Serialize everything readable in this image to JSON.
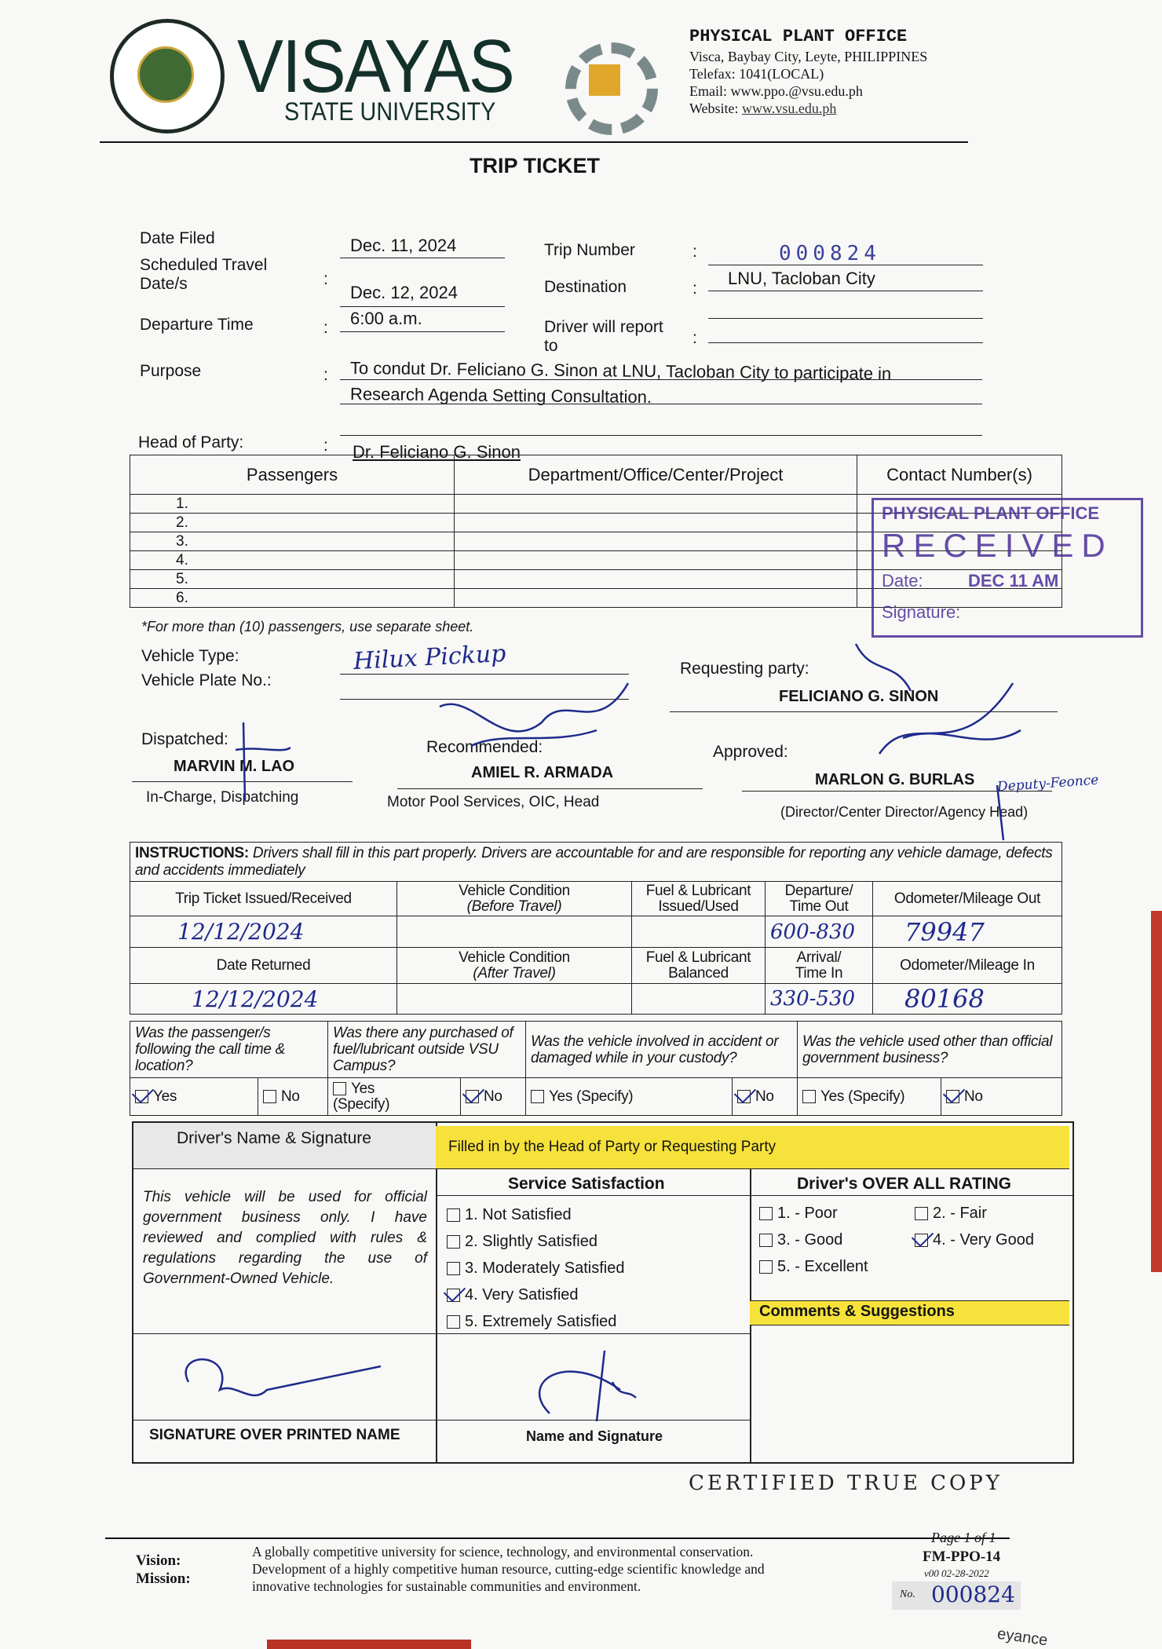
{
  "header": {
    "seal_text": "VISAYAS STATE UNIVERSITY",
    "university_name": "VISAYAS",
    "university_sub": "STATE UNIVERSITY",
    "office_logo_text": "PHYSICAL PLANT OFFICE",
    "office_title": "PHYSICAL PLANT OFFICE",
    "address": "Visca, Baybay City, Leyte, PHILIPPINES",
    "telefax": "Telefax: 1041(LOCAL)",
    "email": "Email: www.ppo.@vsu.edu.ph",
    "website_label": "Website:",
    "website": "www.vsu.edu.ph"
  },
  "title": "TRIP TICKET",
  "fields": {
    "date_filed_label": "Date Filed",
    "date_filed": "Dec. 11, 2024",
    "scheduled_label_1": "Scheduled Travel",
    "scheduled_label_2": "Date/s",
    "scheduled": "Dec. 12, 2024",
    "departure_label": "Departure Time",
    "departure": "6:00 a.m.",
    "purpose_label": "Purpose",
    "purpose_1": "To condut Dr. Feliciano G. Sinon at LNU, Tacloban City to participate in",
    "purpose_2": "Research Agenda Setting Consultation.",
    "trip_number_label": "Trip Number",
    "trip_number": "000824",
    "destination_label": "Destination",
    "destination": "LNU, Tacloban City",
    "report_label_1": "Driver will report",
    "report_label_2": "to",
    "head_label": "Head of Party:",
    "head": "Dr. Feliciano G. Sinon",
    "colon": ":"
  },
  "passengers": {
    "headers": [
      "Passengers",
      "Department/Office/Center/Project",
      "Contact Number(s)"
    ],
    "rows": [
      "1.",
      "2.",
      "3.",
      "4.",
      "5.",
      "6."
    ],
    "note": "*For more than (10) passengers, use separate sheet."
  },
  "stamp": {
    "line1": "PHYSICAL PLANT OFFICE",
    "line2": "RECEIVED",
    "date_label": "Date:",
    "date_value": "DEC 11 AM",
    "signature_label": "Signature:"
  },
  "vehicle": {
    "type_label": "Vehicle Type:",
    "type_value": "Hilux Pickup",
    "plate_label": "Vehicle Plate No.:",
    "requesting_label": "Requesting party:",
    "requesting_name": "FELICIANO G. SINON"
  },
  "signatories": {
    "dispatched_label": "Dispatched:",
    "dispatched_name": "MARVIN M. LAO",
    "dispatched_role": "In-Charge, Dispatching",
    "recommended_label": "Recommended:",
    "recommended_name": "AMIEL R. ARMADA",
    "recommended_role": "Motor Pool Services, OIC, Head",
    "approved_label": "Approved:",
    "approved_name": "MARLON G. BURLAS",
    "approved_role": "(Director/Center Director/Agency Head)",
    "approved_note": "Deputy-Feonce"
  },
  "instructions": {
    "label": "INSTRUCTIONS:",
    "text": "Drivers shall fill in this part properly.  Drivers are accountable for and are responsible for reporting any vehicle damage, defects and accidents immediately",
    "h1": [
      "Trip Ticket Issued/Received",
      "Vehicle Condition",
      "(Before Travel)",
      "Fuel & Lubricant",
      "Issued/Used",
      "Departure/",
      "Time Out",
      "Odometer/Mileage Out"
    ],
    "r1": {
      "issued": "12/12/2024",
      "time_out": "600-830",
      "odo_out": "79947"
    },
    "h2": [
      "Date Returned",
      "Vehicle Condition",
      "(After Travel)",
      "Fuel & Lubricant",
      "Balanced",
      "Arrival/",
      "Time In",
      "Odometer/Mileage In"
    ],
    "r2": {
      "returned": "12/12/2024",
      "time_in": "330-530",
      "odo_in": "80168"
    }
  },
  "questions": {
    "q1": "Was the passenger/s following the call time & location?",
    "q2": "Was there any purchased of fuel/lubricant outside VSU Campus?",
    "q3": "Was the vehicle involved in accident or damaged while in your custody?",
    "q4": "Was the vehicle used other than official government business?",
    "yes": "Yes",
    "no": "No",
    "yes_specify": "Yes (Specify)",
    "yes_2": "Yes",
    "specify_2": "(Specify)",
    "answers": {
      "q1": "Yes",
      "q2": "No",
      "q3": "No",
      "q4": "No"
    }
  },
  "evaluation": {
    "driver_header": "Driver's Name & Signature",
    "yellow_header": "Filled in by the Head of Party or Requesting Party",
    "statement": "This vehicle will be used for official government business only.  I have reviewed and complied with rules & regulations regarding the use of Government-Owned Vehicle.",
    "service_header": "Service Satisfaction",
    "service_options": [
      "1.  Not Satisfied",
      "2.  Slightly Satisfied",
      "3.  Moderately Satisfied",
      "4.  Very Satisfied",
      "5.  Extremely Satisfied"
    ],
    "service_selected": 4,
    "rating_header": "Driver's OVER ALL RATING",
    "rating_options": [
      "1. - Poor",
      "2. - Fair",
      "3. - Good",
      "4. - Very Good",
      "5. - Excellent"
    ],
    "rating_selected": 4,
    "comments_header": "Comments & Suggestions",
    "sig_printed": "SIGNATURE OVER PRINTED NAME",
    "name_sig": "Name and Signature"
  },
  "certified": "CERTIFIED TRUE COPY",
  "footer": {
    "vision_label": "Vision:",
    "mission_label": "Mission:",
    "vision": "A globally competitive university for science, technology, and environmental conservation.",
    "mission_1": "Development of a highly competitive human resource, cutting-edge scientific knowledge and",
    "mission_2": "innovative technologies for sustainable communities and environment.",
    "page": "Page 1 of 1",
    "form_code": "FM-PPO-14",
    "version": "v00 02-28-2022",
    "no_label": "No.",
    "no_value": "000824",
    "partial_text": "eyance"
  },
  "colors": {
    "ink": "#1f2a8c",
    "stamp": "#4b2f9a",
    "highlight": "#f6e23a",
    "edge": "#c0392b"
  }
}
